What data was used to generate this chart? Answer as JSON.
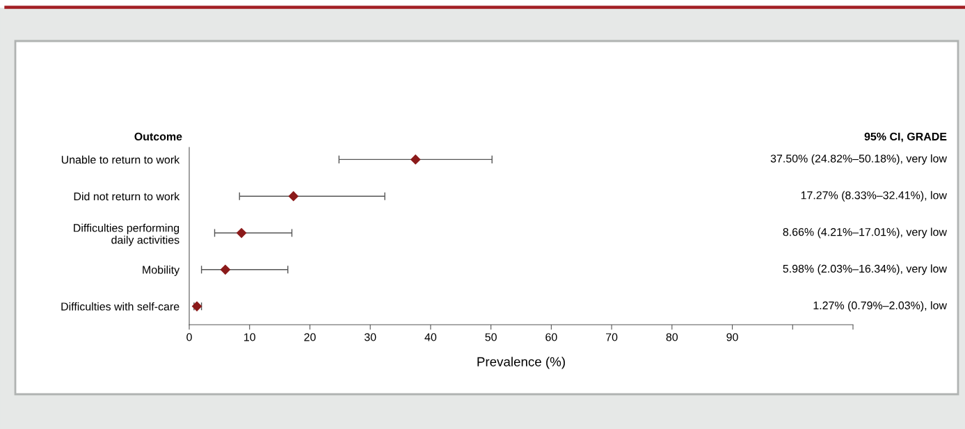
{
  "chart_data": {
    "type": "scatter",
    "orientation": "horizontal",
    "categories": [
      "Unable to return to work",
      "Did not return to work",
      "Difficulties performing\ndaily activities",
      "Mobility",
      "Difficulties with self-care"
    ],
    "values": [
      37.5,
      17.27,
      8.66,
      5.98,
      1.27
    ],
    "errors": [
      [
        24.82,
        50.18
      ],
      [
        8.33,
        32.41
      ],
      [
        4.21,
        17.01
      ],
      [
        2.03,
        16.34
      ],
      [
        0.79,
        2.03
      ]
    ],
    "annotations": [
      "37.50% (24.82%–50.18%), very low",
      "17.27% (8.33%–32.41%), low",
      "8.66% (4.21%–17.01%), very low",
      "5.98% (2.03%–16.34%), very low",
      "1.27% (0.79%–2.03%), low"
    ],
    "color": "#8b1a1a",
    "marker": "diamond",
    "xlabel": "Prevalence (%)",
    "ylabel": "Outcome",
    "y2label": "95% CI, GRADE",
    "xlim": [
      0,
      110
    ],
    "xticks": [
      0,
      10,
      20,
      30,
      40,
      50,
      60,
      70,
      80,
      90,
      {
        "value": 100,
        "label": null
      },
      {
        "value": 110,
        "label": null
      }
    ],
    "grid": false,
    "legend": false
  }
}
